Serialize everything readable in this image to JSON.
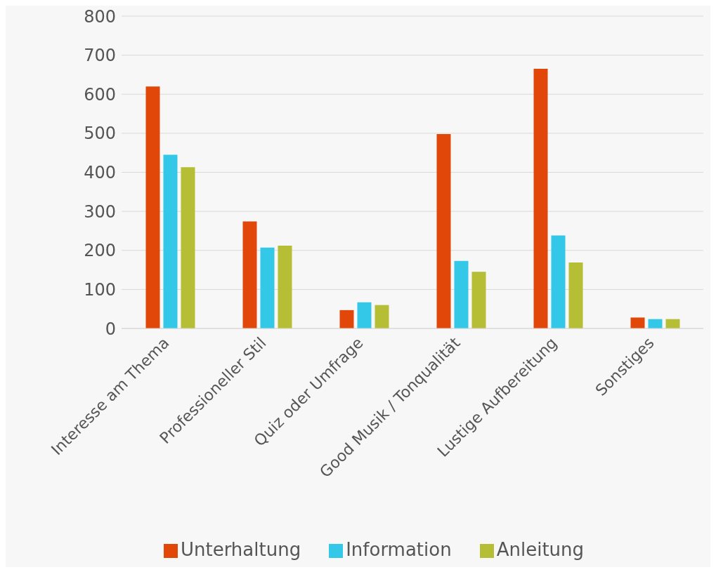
{
  "chart_data": {
    "type": "bar",
    "categories": [
      "Interesse am Thema",
      "Professioneller Stil",
      "Quiz oder Umfrage",
      "Good Musik / Tonqualität",
      "Lustige Aufbereitung",
      "Sonstiges"
    ],
    "series": [
      {
        "name": "Unterhaltung",
        "color": "#e2470a",
        "values": [
          620,
          274,
          47,
          498,
          665,
          28
        ]
      },
      {
        "name": "Information",
        "color": "#33c8e8",
        "values": [
          445,
          207,
          67,
          173,
          238,
          24
        ]
      },
      {
        "name": "Anleitung",
        "color": "#b5be35",
        "values": [
          413,
          212,
          60,
          145,
          169,
          24
        ]
      }
    ],
    "ylim": [
      0,
      800
    ],
    "yticks": [
      0,
      100,
      200,
      300,
      400,
      500,
      600,
      700,
      800
    ],
    "grid": "y",
    "legend": "bottom"
  }
}
